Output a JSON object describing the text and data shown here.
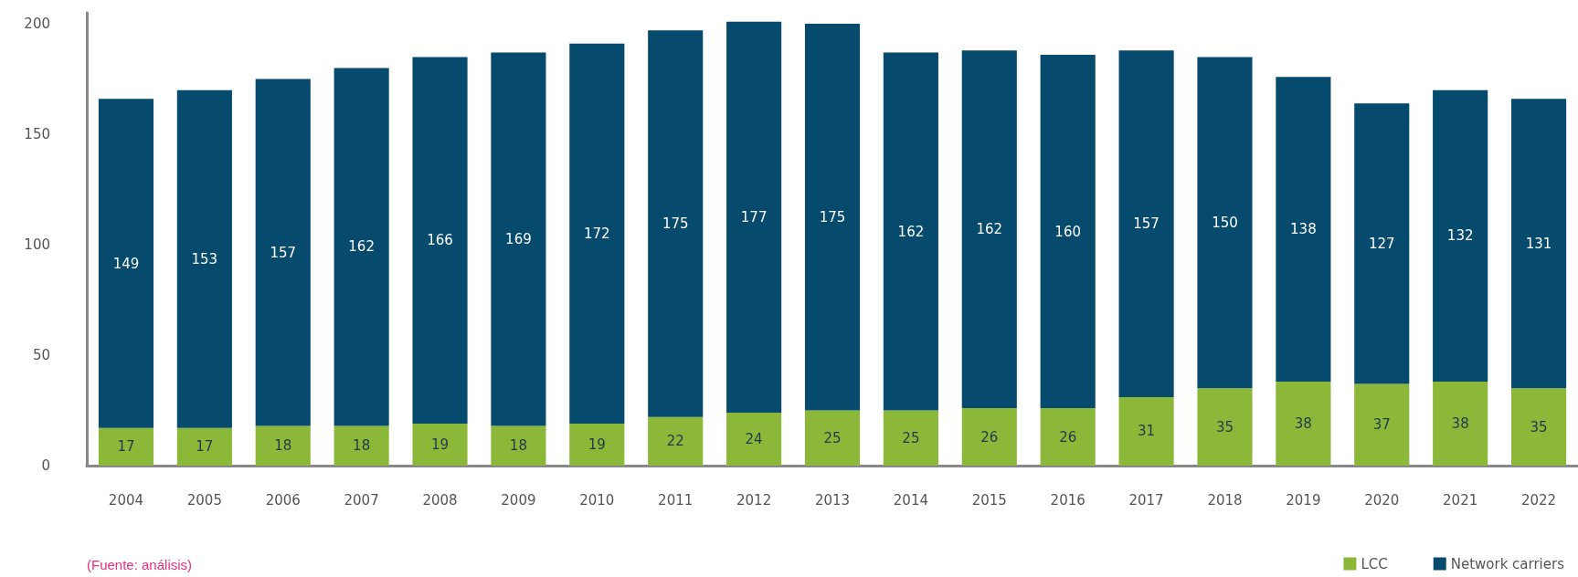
{
  "chart_data": {
    "type": "bar",
    "stacked": true,
    "categories": [
      "2004",
      "2005",
      "2006",
      "2007",
      "2008",
      "2009",
      "2010",
      "2011",
      "2012",
      "2013",
      "2014",
      "2015",
      "2016",
      "2017",
      "2018",
      "2019",
      "2020",
      "2021",
      "2022"
    ],
    "series": [
      {
        "name": "LCC",
        "color": "#8cb83a",
        "values": [
          17,
          17,
          18,
          18,
          19,
          18,
          19,
          22,
          24,
          25,
          25,
          26,
          26,
          31,
          35,
          38,
          37,
          38,
          35
        ]
      },
      {
        "name": "Network carriers",
        "color": "#064a6e",
        "values": [
          149,
          153,
          157,
          162,
          166,
          169,
          172,
          175,
          177,
          175,
          162,
          162,
          160,
          157,
          150,
          138,
          127,
          132,
          131
        ]
      }
    ],
    "ylim": [
      0,
      205
    ],
    "yticks": [
      0,
      50,
      100,
      150,
      200
    ],
    "grid": false,
    "legend": "bottom right",
    "data_labels": true,
    "annotations": [
      "(Fuente: análisis)"
    ]
  }
}
